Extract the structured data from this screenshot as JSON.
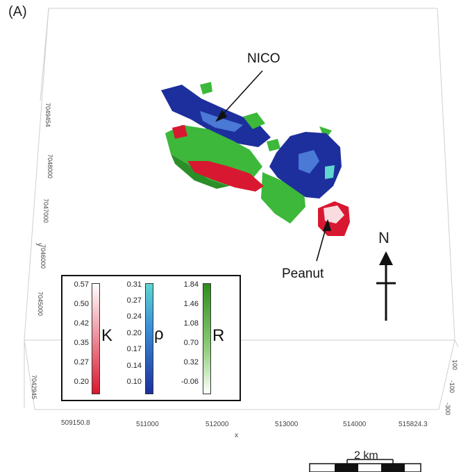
{
  "panel_label": "(A)",
  "annotations": {
    "nico": "NICO",
    "peanut": "Peanut",
    "north": "N"
  },
  "axes": {
    "x_label": "x",
    "x_ticks": [
      "509150.8",
      "511000",
      "512000",
      "513000",
      "514000",
      "515824.3"
    ],
    "y_label": "y",
    "y_ticks": [
      "7049454",
      "7048000",
      "7047000",
      "7046000",
      "7045000",
      "7042945"
    ],
    "z_ticks": [
      "100",
      "-100",
      "-300"
    ]
  },
  "legend": {
    "K": {
      "symbol": "K",
      "ticks": [
        "0.57",
        "0.50",
        "0.42",
        "0.35",
        "0.27",
        "0.20"
      ],
      "colors": [
        "#ffffff",
        "#d81830"
      ]
    },
    "rho": {
      "symbol": "ρ",
      "ticks": [
        "0.31",
        "0.27",
        "0.24",
        "0.20",
        "0.17",
        "0.14",
        "0.10"
      ],
      "colors": [
        "#5fd6cf",
        "#1d2f9c"
      ]
    },
    "R": {
      "symbol": "R",
      "ticks": [
        "1.84",
        "1.46",
        "1.08",
        "0.70",
        "0.32",
        "-0.06"
      ],
      "colors": [
        "#2e8d1d",
        "#ffffff"
      ]
    }
  },
  "scale_bar": {
    "label": "2 km"
  },
  "colors": {
    "K_body": "#d81830",
    "rho_body": "#1d2f9c",
    "R_body": "#3db83a"
  }
}
